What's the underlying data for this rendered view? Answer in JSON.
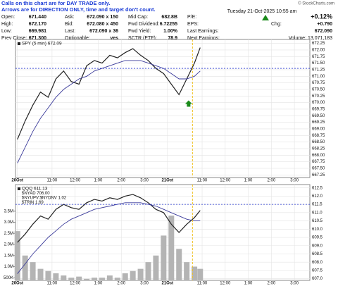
{
  "notice": [
    "Calls on this chart are for DAY TRADE only.",
    "Arrows are for DIRECTION ONLY, time and target don't count."
  ],
  "quote": {
    "rows": [
      [
        {
          "label": "Open:",
          "value": "671.440"
        },
        {
          "label": "Ask:",
          "value": "672.090 x 150"
        },
        {
          "label": "Mid Cap:",
          "value": "682.8B"
        },
        {
          "label": "P/E:"
        }
      ],
      [
        {
          "label": "High:",
          "value": "672.170"
        },
        {
          "label": "Bid:",
          "value": "672.080 x 450"
        },
        {
          "label": "Fwd Dividend:",
          "value": "6.72255"
        },
        {
          "label": "EPS:"
        }
      ],
      [
        {
          "label": "Low:",
          "value": "669.981"
        },
        {
          "label": "Last:",
          "value": "672.090 x 36"
        },
        {
          "label": "Fwd Yield:",
          "value": "1.00%"
        },
        {
          "label": "Last Earnings:"
        }
      ],
      [
        {
          "label": "Prev Close:",
          "value": "671.300"
        },
        {
          "label": "Optionable:",
          "value": "yes"
        },
        {
          "label": "SCTR (ETF):",
          "value": "78.9"
        },
        {
          "label": "Next Earnings:"
        }
      ]
    ],
    "date": "Tuesday  21-Oct-2025  10:55 am",
    "chg_label": "Chg:",
    "chg_pct": "+0.12%",
    "chg": "+0.790",
    "last": "672.090",
    "volume": "Volume: 13,071,183",
    "copyright": "© StockCharts.com"
  },
  "chart_data": [
    {
      "type": "line",
      "x": [
        0,
        4,
        8,
        12,
        16,
        20,
        24,
        28,
        32,
        36,
        40,
        44,
        48,
        52,
        56,
        60,
        64,
        68,
        72,
        76,
        80,
        84,
        88,
        92,
        95
      ],
      "series": [
        {
          "name": "SPY (5 min) 672.09",
          "color": "#222222",
          "values": [
            668.6,
            669.3,
            669.9,
            670.4,
            670.2,
            670.9,
            671.2,
            670.8,
            670.7,
            671.4,
            671.6,
            671.5,
            671.8,
            671.7,
            671.9,
            672.05,
            671.8,
            671.6,
            671.3,
            671.1,
            670.7,
            670.3,
            670.9,
            671.5,
            672.09
          ]
        },
        {
          "color": "#3a3a9a",
          "values": [
            667.7,
            668.3,
            668.9,
            669.4,
            669.8,
            670.2,
            670.5,
            670.7,
            670.9,
            671.0,
            671.2,
            671.3,
            671.4,
            671.5,
            671.6,
            671.6,
            671.6,
            671.5,
            671.4,
            671.3,
            671.1,
            670.9,
            670.9,
            671.0,
            671.2
          ]
        }
      ],
      "xlim": [
        -1,
        152
      ],
      "xticks": [
        {
          "value": 0,
          "label": "20Oct"
        },
        {
          "value": 18,
          "label": "11:00"
        },
        {
          "value": 30,
          "label": "12:00"
        },
        {
          "value": 42,
          "label": "1:00"
        },
        {
          "value": 54,
          "label": "2:00"
        },
        {
          "value": 66,
          "label": "3:00"
        },
        {
          "value": 78,
          "label": "21Oct"
        },
        {
          "value": 96,
          "label": "11:00"
        },
        {
          "value": 108,
          "label": "12:00"
        },
        {
          "value": 120,
          "label": "1:00"
        },
        {
          "value": 132,
          "label": "2:00"
        },
        {
          "value": 144,
          "label": "3:00"
        }
      ],
      "ylim": [
        667.15,
        672.4
      ],
      "yticks": [
        672.25,
        {
          "value": 672,
          "label": "672.00"
        },
        671.75,
        {
          "value": 671.5,
          "label": "671.50"
        },
        671.25,
        {
          "value": 671,
          "label": "671.00"
        },
        670.75,
        {
          "value": 670.5,
          "label": "670.50"
        },
        670.25,
        {
          "value": 670,
          "label": "670.00"
        },
        669.75,
        {
          "value": 669.5,
          "label": "669.50"
        },
        669.25,
        {
          "value": 669,
          "label": "669.00"
        },
        668.75,
        {
          "value": 668.5,
          "label": "668.50"
        },
        668.25,
        {
          "value": 668,
          "label": "668.00"
        },
        667.75,
        {
          "value": 667.5,
          "label": "667.50"
        },
        667.25
      ],
      "grid": true,
      "hlines": [
        671.3
      ],
      "vlines": [
        91
      ],
      "arrows": [
        {
          "x": 89,
          "y": 669.95,
          "color": "#1a8a1a"
        }
      ]
    },
    {
      "type": "line",
      "x": [
        0,
        4,
        8,
        12,
        16,
        20,
        24,
        28,
        32,
        36,
        40,
        44,
        48,
        52,
        56,
        60,
        64,
        68,
        72,
        76,
        80,
        84,
        88,
        92,
        95
      ],
      "series": [
        {
          "name": "QQQ 611.13",
          "color": "#222222",
          "values": [
            609.2,
            609.7,
            610.3,
            610.8,
            610.6,
            611.2,
            611.5,
            611.3,
            611.2,
            611.6,
            611.8,
            611.7,
            611.9,
            611.8,
            612.0,
            612.1,
            611.9,
            611.6,
            611.2,
            611.0,
            610.3,
            609.8,
            610.3,
            610.7,
            611.13
          ]
        },
        {
          "color": "#3a3a9a",
          "values": [
            607.3,
            607.9,
            608.5,
            609.0,
            609.5,
            609.9,
            610.3,
            610.6,
            610.8,
            611.0,
            611.2,
            611.3,
            611.4,
            611.5,
            611.6,
            611.6,
            611.6,
            611.5,
            611.4,
            611.2,
            611.0,
            610.8,
            610.6,
            610.5,
            610.5
          ]
        },
        {
          "type": "bar",
          "axis": "y2",
          "color": "#b4b4b4",
          "values": [
            2600000,
            1500000,
            1200000,
            900000,
            800000,
            700000,
            600000,
            500000,
            550000,
            450000,
            500000,
            500000,
            600000,
            500000,
            700000,
            800000,
            900000,
            1200000,
            1500000,
            2400000,
            3300000,
            1800000,
            1200000,
            1000000,
            900000
          ]
        }
      ],
      "indicators": [
        "$NYAD 706.00",
        "$NYUPV:$NYDNV 1.02",
        "$TRIN 1.69"
      ],
      "xlim": [
        -1,
        152
      ],
      "xticks": [
        {
          "value": 0,
          "label": "20Oct"
        },
        {
          "value": 18,
          "label": "11:00"
        },
        {
          "value": 30,
          "label": "12:00"
        },
        {
          "value": 42,
          "label": "1:00"
        },
        {
          "value": 54,
          "label": "2:00"
        },
        {
          "value": 66,
          "label": "3:00"
        },
        {
          "value": 78,
          "label": "21Oct"
        },
        {
          "value": 96,
          "label": "11:00"
        },
        {
          "value": 108,
          "label": "12:00"
        },
        {
          "value": 120,
          "label": "1:00"
        },
        {
          "value": 132,
          "label": "2:00"
        },
        {
          "value": 144,
          "label": "3:00"
        }
      ],
      "ylim": [
        606.9,
        612.7
      ],
      "yticks": [
        612.5,
        {
          "value": 612,
          "label": "612.0"
        },
        611.5,
        {
          "value": 611,
          "label": "611.0"
        },
        610.5,
        {
          "value": 610,
          "label": "610.0"
        },
        609.5,
        {
          "value": 609,
          "label": "609.0"
        },
        608.5,
        {
          "value": 608,
          "label": "608.0"
        },
        607.5,
        {
          "value": 607,
          "label": "607.0"
        }
      ],
      "y2lim": [
        380000,
        4700000
      ],
      "y2ticks": [
        {
          "value": 3500000,
          "label": "3.5M"
        },
        {
          "value": 3000000,
          "label": "3.0M"
        },
        {
          "value": 2500000,
          "label": "2.5M"
        },
        {
          "value": 2000000,
          "label": "2.0M"
        },
        {
          "value": 1500000,
          "label": "1.5M"
        },
        {
          "value": 1000000,
          "label": "1.0M"
        },
        {
          "value": 500000,
          "label": "500K"
        }
      ],
      "y2_side": "left",
      "grid": true,
      "hlines": [
        611.5
      ],
      "vlines": [
        91
      ]
    }
  ]
}
